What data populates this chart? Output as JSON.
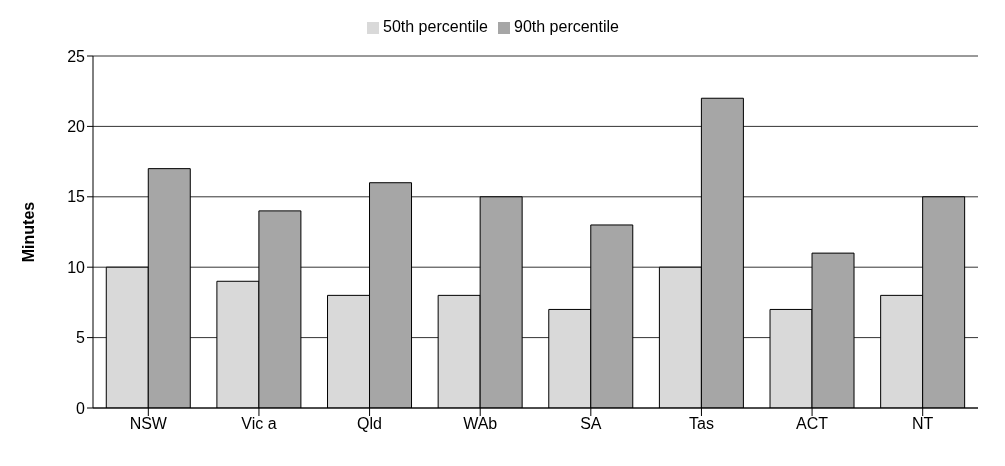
{
  "chart_data": {
    "type": "bar",
    "ylabel": "Minutes",
    "categories": [
      "NSW",
      "Vic a",
      "Qld",
      "WAb",
      "SA",
      "Tas",
      "ACT",
      "NT"
    ],
    "series": [
      {
        "name": "50th percentile",
        "color": "#d9d9d9",
        "values": [
          10,
          9,
          8,
          8,
          7,
          10,
          7,
          8
        ]
      },
      {
        "name": "90th percentile",
        "color": "#a6a6a6",
        "values": [
          17,
          14,
          16,
          15,
          13,
          22,
          11,
          15
        ]
      }
    ],
    "ylim": [
      0,
      25
    ],
    "yticks": [
      0,
      5,
      10,
      15,
      20,
      25
    ],
    "grid": "y",
    "legend": "top"
  }
}
